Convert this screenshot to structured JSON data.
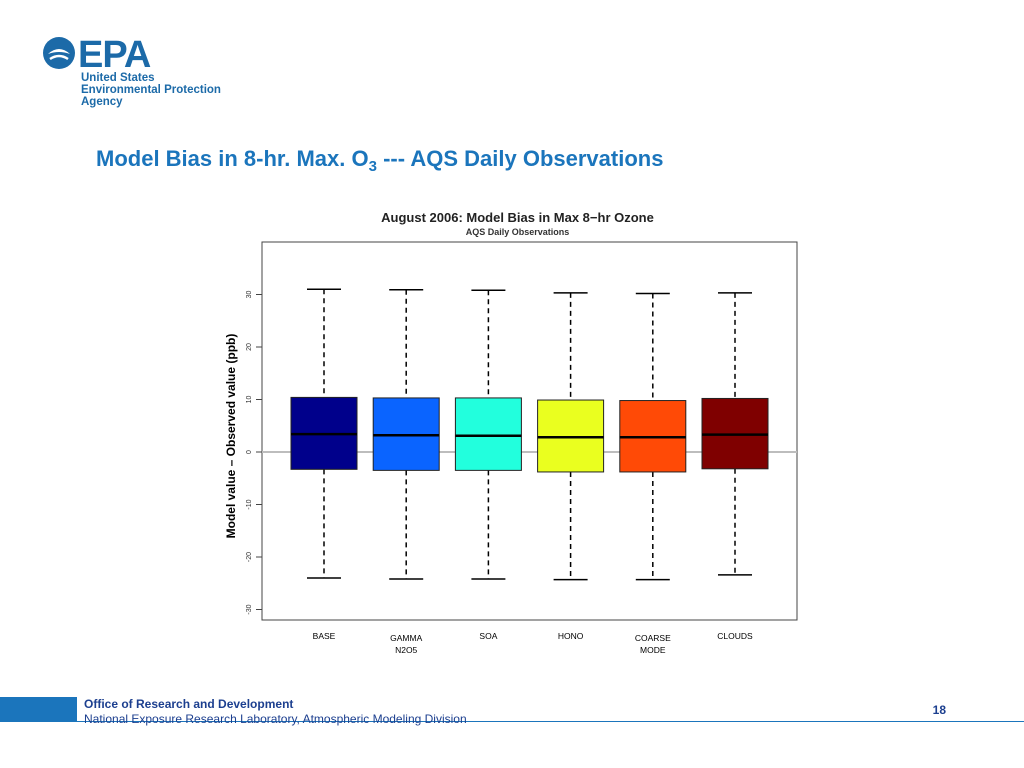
{
  "logo": {
    "mark": "EPA",
    "lines": [
      "United States",
      "Environmental Protection",
      "Agency"
    ],
    "color": "#1c6aa8"
  },
  "slide": {
    "title_prefix": "Model Bias in 8-hr. Max. O",
    "title_sub": "3",
    "title_suffix": " --- AQS Daily Observations"
  },
  "chart_data": {
    "type": "box",
    "title": "August  2006: Model Bias in Max 8−hr Ozone",
    "subtitle": "AQS Daily Observations",
    "ylabel": "Model value – Observed value (ppb)",
    "ylim": [
      -32,
      40
    ],
    "yticks": [
      -30,
      -20,
      -10,
      0,
      10,
      20,
      30
    ],
    "reference_line": 0,
    "categories": [
      {
        "label": [
          "BASE"
        ],
        "color": "#00008b",
        "whisker_low": -24,
        "q1": -3.3,
        "median": 3.4,
        "q3": 10.4,
        "whisker_high": 31.0
      },
      {
        "label": [
          "GAMMA",
          "N2O5"
        ],
        "color": "#0a64ff",
        "whisker_low": -24.2,
        "q1": -3.5,
        "median": 3.2,
        "q3": 10.3,
        "whisker_high": 30.9
      },
      {
        "label": [
          "SOA"
        ],
        "color": "#22ffdd",
        "whisker_low": -24.2,
        "q1": -3.5,
        "median": 3.1,
        "q3": 10.3,
        "whisker_high": 30.8
      },
      {
        "label": [
          "HONO"
        ],
        "color": "#eaff1f",
        "whisker_low": -24.3,
        "q1": -3.8,
        "median": 2.8,
        "q3": 9.9,
        "whisker_high": 30.3
      },
      {
        "label": [
          "COARSE",
          "MODE"
        ],
        "color": "#ff4a06",
        "whisker_low": -24.3,
        "q1": -3.8,
        "median": 2.8,
        "q3": 9.8,
        "whisker_high": 30.2
      },
      {
        "label": [
          "CLOUDS"
        ],
        "color": "#7f0000",
        "whisker_low": -23.4,
        "q1": -3.2,
        "median": 3.3,
        "q3": 10.2,
        "whisker_high": 30.3
      }
    ]
  },
  "footer": {
    "office": "Office of Research and Development",
    "lab": "National Exposure Research Laboratory, Atmospheric Modeling Division",
    "page": "18"
  }
}
